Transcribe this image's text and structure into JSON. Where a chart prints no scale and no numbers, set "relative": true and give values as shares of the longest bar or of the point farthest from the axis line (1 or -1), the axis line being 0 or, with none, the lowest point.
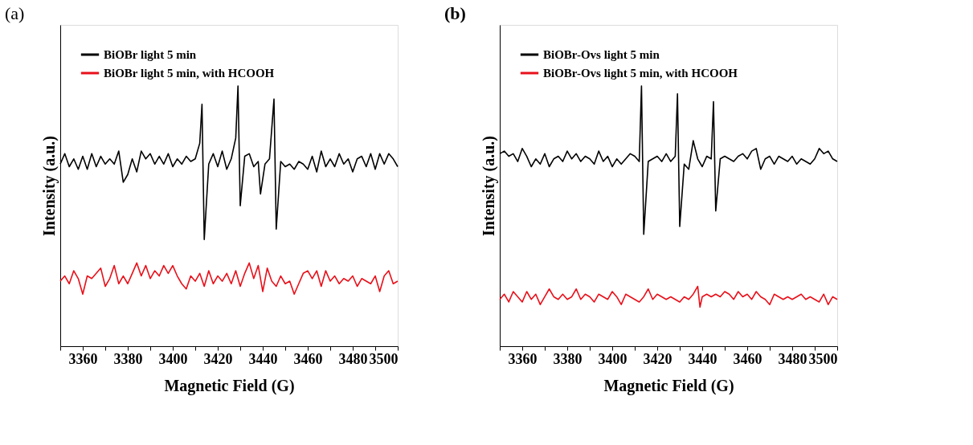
{
  "chart_data": [
    {
      "type": "line",
      "title": "(a)",
      "xlabel": "Magnetic Field (G)",
      "ylabel": "Intensity (a.u.)",
      "relative": true,
      "tick_labels": "x",
      "legend": "top left",
      "grid": false,
      "marker": "none",
      "line_style": "solid",
      "xlim": [
        3350,
        3500
      ],
      "xticks": [
        {
          "value": 3350,
          "label": null
        },
        3360,
        {
          "value": 3370,
          "label": null
        },
        3380,
        {
          "value": 3390,
          "label": null
        },
        3400,
        {
          "value": 3410,
          "label": null
        },
        3420,
        {
          "value": 3430,
          "label": null
        },
        3440,
        {
          "value": 3450,
          "label": null
        },
        3460,
        {
          "value": 3470,
          "label": null
        },
        3480,
        {
          "value": 3490,
          "label": null
        },
        3500
      ],
      "series": [
        {
          "name": "BiOBr light 5 min",
          "color": "#000000",
          "x": [
            3350,
            3352,
            3354,
            3356,
            3358,
            3360,
            3362,
            3364,
            3366,
            3368,
            3370,
            3372,
            3374,
            3376,
            3378,
            3380,
            3382,
            3384,
            3386,
            3388,
            3390,
            3392,
            3394,
            3396,
            3398,
            3400,
            3402,
            3404,
            3406,
            3408,
            3410,
            3412,
            3413,
            3414,
            3416,
            3418,
            3420,
            3422,
            3424,
            3426,
            3428,
            3429,
            3430,
            3432,
            3434,
            3436,
            3438,
            3439,
            3441,
            3443,
            3445,
            3446,
            3448,
            3450,
            3452,
            3454,
            3456,
            3458,
            3460,
            3462,
            3464,
            3466,
            3468,
            3470,
            3472,
            3474,
            3476,
            3478,
            3480,
            3482,
            3484,
            3486,
            3488,
            3490,
            3492,
            3494,
            3496,
            3498,
            3500
          ],
          "values": [
            0.7,
            0.74,
            0.69,
            0.72,
            0.68,
            0.73,
            0.68,
            0.74,
            0.69,
            0.73,
            0.7,
            0.72,
            0.7,
            0.75,
            0.63,
            0.66,
            0.72,
            0.67,
            0.75,
            0.72,
            0.74,
            0.7,
            0.73,
            0.7,
            0.74,
            0.69,
            0.72,
            0.7,
            0.73,
            0.71,
            0.72,
            0.78,
            0.93,
            0.41,
            0.7,
            0.74,
            0.69,
            0.75,
            0.68,
            0.72,
            0.8,
            1.0,
            0.54,
            0.73,
            0.74,
            0.69,
            0.71,
            0.585,
            0.7,
            0.72,
            0.95,
            0.45,
            0.71,
            0.69,
            0.7,
            0.68,
            0.71,
            0.7,
            0.68,
            0.73,
            0.67,
            0.75,
            0.69,
            0.72,
            0.69,
            0.74,
            0.7,
            0.72,
            0.67,
            0.72,
            0.73,
            0.69,
            0.74,
            0.68,
            0.74,
            0.7,
            0.74,
            0.72,
            0.69
          ]
        },
        {
          "name": "BiOBr light 5 min, with HCOOH",
          "color": "#e8101a",
          "x": [
            3350,
            3352,
            3354,
            3356,
            3358,
            3360,
            3362,
            3364,
            3366,
            3368,
            3370,
            3372,
            3374,
            3376,
            3378,
            3380,
            3382,
            3384,
            3386,
            3388,
            3390,
            3392,
            3394,
            3396,
            3398,
            3400,
            3402,
            3404,
            3406,
            3408,
            3410,
            3412,
            3414,
            3416,
            3418,
            3420,
            3422,
            3424,
            3426,
            3428,
            3430,
            3432,
            3434,
            3436,
            3438,
            3440,
            3442,
            3444,
            3446,
            3448,
            3450,
            3452,
            3454,
            3456,
            3458,
            3460,
            3462,
            3464,
            3466,
            3468,
            3470,
            3472,
            3474,
            3476,
            3478,
            3480,
            3482,
            3484,
            3486,
            3488,
            3490,
            3492,
            3494,
            3496,
            3498,
            3500
          ],
          "values": [
            0.25,
            0.27,
            0.24,
            0.29,
            0.26,
            0.2,
            0.27,
            0.26,
            0.28,
            0.3,
            0.23,
            0.26,
            0.31,
            0.24,
            0.27,
            0.24,
            0.28,
            0.32,
            0.27,
            0.31,
            0.26,
            0.29,
            0.27,
            0.31,
            0.28,
            0.31,
            0.27,
            0.24,
            0.22,
            0.27,
            0.25,
            0.28,
            0.23,
            0.29,
            0.24,
            0.27,
            0.25,
            0.28,
            0.24,
            0.29,
            0.23,
            0.28,
            0.32,
            0.26,
            0.31,
            0.21,
            0.3,
            0.25,
            0.23,
            0.27,
            0.24,
            0.25,
            0.2,
            0.24,
            0.28,
            0.29,
            0.26,
            0.29,
            0.23,
            0.29,
            0.25,
            0.27,
            0.24,
            0.26,
            0.25,
            0.27,
            0.23,
            0.26,
            0.25,
            0.24,
            0.27,
            0.21,
            0.27,
            0.29,
            0.24,
            0.25
          ]
        }
      ]
    },
    {
      "type": "line",
      "title": "(b)",
      "xlabel": "Magnetic Field (G)",
      "ylabel": "Intensity (a.u.)",
      "relative": true,
      "tick_labels": "x",
      "legend": "top left",
      "grid": false,
      "marker": "none",
      "line_style": "solid",
      "xlim": [
        3350,
        3500
      ],
      "xticks": [
        {
          "value": 3350,
          "label": null
        },
        3360,
        {
          "value": 3370,
          "label": null
        },
        3380,
        {
          "value": 3390,
          "label": null
        },
        3400,
        {
          "value": 3410,
          "label": null
        },
        3420,
        {
          "value": 3430,
          "label": null
        },
        3440,
        {
          "value": 3450,
          "label": null
        },
        3460,
        {
          "value": 3470,
          "label": null
        },
        3480,
        {
          "value": 3490,
          "label": null
        },
        3500
      ],
      "series": [
        {
          "name": "BiOBr-Ovs light 5 min",
          "color": "#000000",
          "x": [
            3350,
            3352,
            3354,
            3356,
            3358,
            3360,
            3362,
            3364,
            3366,
            3368,
            3370,
            3372,
            3374,
            3376,
            3378,
            3380,
            3382,
            3384,
            3386,
            3388,
            3390,
            3392,
            3394,
            3396,
            3398,
            3400,
            3402,
            3404,
            3406,
            3408,
            3410,
            3412,
            3413,
            3414,
            3416,
            3418,
            3420,
            3422,
            3424,
            3426,
            3428,
            3429,
            3430,
            3432,
            3434,
            3436,
            3438,
            3440,
            3442,
            3444,
            3445,
            3446,
            3448,
            3450,
            3452,
            3454,
            3456,
            3458,
            3460,
            3462,
            3464,
            3466,
            3468,
            3470,
            3472,
            3474,
            3476,
            3478,
            3480,
            3482,
            3484,
            3486,
            3488,
            3490,
            3492,
            3494,
            3496,
            3498,
            3500
          ],
          "values": [
            0.74,
            0.75,
            0.73,
            0.74,
            0.71,
            0.76,
            0.73,
            0.69,
            0.72,
            0.7,
            0.74,
            0.69,
            0.72,
            0.73,
            0.71,
            0.75,
            0.72,
            0.74,
            0.71,
            0.73,
            0.72,
            0.7,
            0.75,
            0.71,
            0.73,
            0.69,
            0.72,
            0.7,
            0.72,
            0.74,
            0.73,
            0.71,
            1.0,
            0.43,
            0.71,
            0.72,
            0.73,
            0.71,
            0.74,
            0.71,
            0.73,
            0.97,
            0.46,
            0.7,
            0.68,
            0.79,
            0.72,
            0.69,
            0.73,
            0.72,
            0.94,
            0.52,
            0.72,
            0.73,
            0.72,
            0.71,
            0.73,
            0.74,
            0.72,
            0.75,
            0.76,
            0.68,
            0.72,
            0.73,
            0.7,
            0.73,
            0.72,
            0.71,
            0.73,
            0.7,
            0.72,
            0.71,
            0.7,
            0.72,
            0.76,
            0.74,
            0.75,
            0.72,
            0.71
          ]
        },
        {
          "name": "BiOBr-Ovs light 5 min, with HCOOH",
          "color": "#e8101a",
          "x": [
            3350,
            3352,
            3354,
            3356,
            3358,
            3360,
            3362,
            3364,
            3366,
            3368,
            3370,
            3372,
            3374,
            3376,
            3378,
            3380,
            3382,
            3384,
            3386,
            3388,
            3390,
            3392,
            3394,
            3396,
            3398,
            3400,
            3402,
            3404,
            3406,
            3408,
            3410,
            3412,
            3414,
            3416,
            3418,
            3420,
            3422,
            3424,
            3426,
            3428,
            3430,
            3432,
            3434,
            3436,
            3438,
            3439,
            3440,
            3442,
            3444,
            3446,
            3448,
            3450,
            3452,
            3454,
            3456,
            3458,
            3460,
            3462,
            3464,
            3466,
            3468,
            3470,
            3472,
            3474,
            3476,
            3478,
            3480,
            3482,
            3484,
            3486,
            3488,
            3490,
            3492,
            3494,
            3496,
            3498,
            3500
          ],
          "values": [
            0.18,
            0.2,
            0.17,
            0.21,
            0.19,
            0.17,
            0.21,
            0.18,
            0.2,
            0.16,
            0.19,
            0.22,
            0.19,
            0.18,
            0.2,
            0.18,
            0.19,
            0.22,
            0.18,
            0.2,
            0.19,
            0.17,
            0.2,
            0.19,
            0.18,
            0.21,
            0.19,
            0.16,
            0.2,
            0.19,
            0.18,
            0.17,
            0.19,
            0.22,
            0.18,
            0.2,
            0.19,
            0.18,
            0.19,
            0.18,
            0.17,
            0.19,
            0.18,
            0.2,
            0.23,
            0.15,
            0.19,
            0.2,
            0.19,
            0.2,
            0.19,
            0.21,
            0.2,
            0.18,
            0.21,
            0.19,
            0.2,
            0.18,
            0.21,
            0.19,
            0.18,
            0.16,
            0.2,
            0.19,
            0.18,
            0.19,
            0.18,
            0.19,
            0.2,
            0.18,
            0.19,
            0.18,
            0.17,
            0.2,
            0.16,
            0.19,
            0.18
          ]
        }
      ]
    }
  ]
}
